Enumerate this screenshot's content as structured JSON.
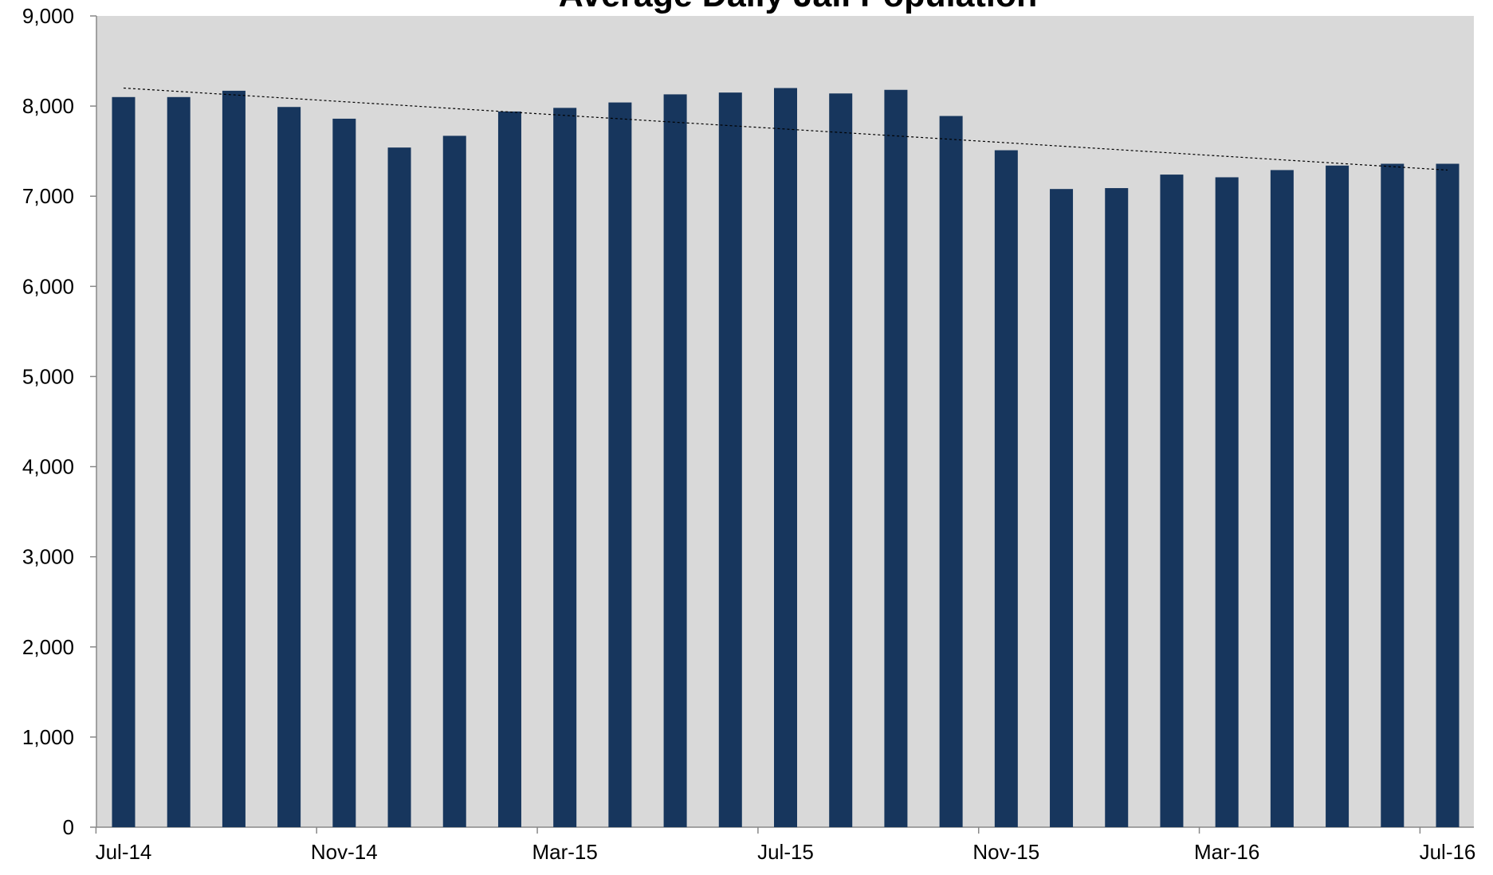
{
  "chart_data": {
    "type": "bar",
    "title": "Average Daily Jail Population",
    "categories": [
      "Jul-14",
      null,
      null,
      null,
      "Nov-14",
      null,
      null,
      null,
      "Mar-15",
      null,
      null,
      null,
      "Jul-15",
      null,
      null,
      null,
      "Nov-15",
      null,
      null,
      null,
      "Mar-16",
      null,
      null,
      null,
      "Jul-16"
    ],
    "values": [
      8100,
      8100,
      8170,
      7990,
      7860,
      7540,
      7670,
      7940,
      7980,
      8040,
      8130,
      8150,
      8200,
      8140,
      8180,
      7890,
      7510,
      7080,
      7090,
      7240,
      7210,
      7290,
      7340,
      7360,
      7360
    ],
    "color": "#17365d",
    "trendline": {
      "start": 8200,
      "end": 7290
    },
    "ylim": [
      0,
      9000
    ],
    "yticks": [
      {
        "value": 0,
        "label": "0"
      },
      {
        "value": 1000,
        "label": "1,000"
      },
      {
        "value": 2000,
        "label": "2,000"
      },
      {
        "value": 3000,
        "label": "3,000"
      },
      {
        "value": 4000,
        "label": "4,000"
      },
      {
        "value": 5000,
        "label": "5,000"
      },
      {
        "value": 6000,
        "label": "6,000"
      },
      {
        "value": 7000,
        "label": "7,000"
      },
      {
        "value": 8000,
        "label": "8,000"
      },
      {
        "value": 9000,
        "label": "9,000"
      }
    ],
    "grid": false
  }
}
